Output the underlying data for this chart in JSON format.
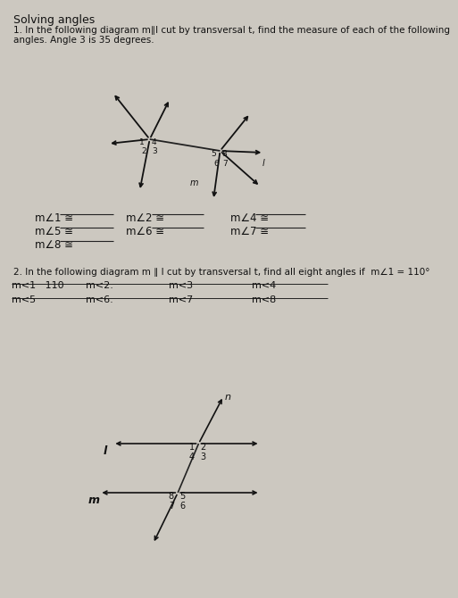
{
  "title": "Solving angles",
  "bg_color": "#ccc8c0",
  "text_color": "#111111",
  "p1_line1": "1. In the following diagram m∥l cut by transversal t, find the measure of each of the following",
  "p1_line2": "angles. Angle 3 is 35 degrees.",
  "p2_line1": "2. In the following diagram m ∥ l cut by transversal t, find all eight angles if  m∠1 = 110°",
  "p2_row1": [
    "m<1   110",
    "m<2.",
    "m<3",
    "m<4"
  ],
  "p2_row2": [
    "m<5",
    "m<6.",
    "m<7",
    "m<8"
  ],
  "p1_col1": [
    "m∠1 ≅",
    "m∠5 ≅",
    "m∠8 ≅"
  ],
  "p1_col2": [
    "m∠2 ≅",
    "m∠6 ≅"
  ],
  "p1_col3": [
    "m∠4 ≅",
    "m∠7 ≅"
  ]
}
